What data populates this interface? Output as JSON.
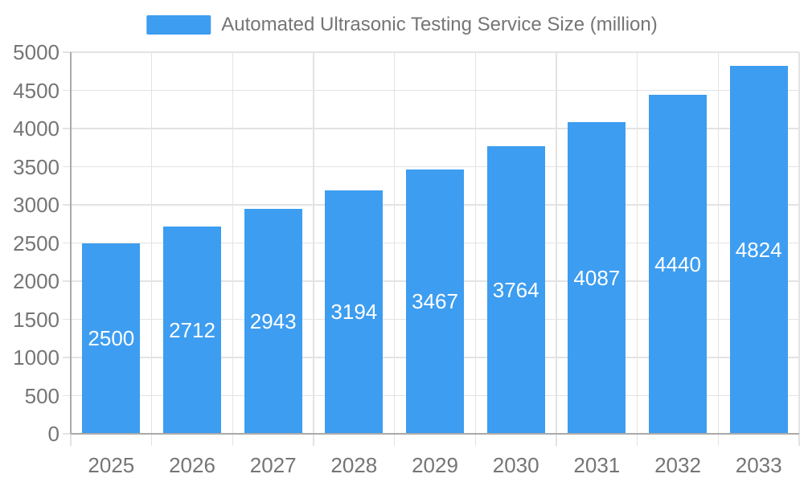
{
  "chart_data": {
    "type": "bar",
    "title": "Automated Ultrasonic Testing Service Size (million)",
    "legend": [
      "Automated Ultrasonic Testing Service Size (million)"
    ],
    "legend_position": "top",
    "categories": [
      "2025",
      "2026",
      "2027",
      "2028",
      "2029",
      "2030",
      "2031",
      "2032",
      "2033"
    ],
    "values": [
      2500,
      2712,
      2943,
      3194,
      3467,
      3764,
      4087,
      4440,
      4824
    ],
    "xlabel": "",
    "ylabel": "",
    "ylim": [
      0,
      5000
    ],
    "yticks": [
      0,
      500,
      1000,
      1500,
      2000,
      2500,
      3000,
      3500,
      4000,
      4500,
      5000
    ],
    "grid": true,
    "value_labels_shown": true,
    "colors": {
      "bar": "#3D9DF0",
      "grid": "#E3E3E3",
      "axis": "#AAAAAA",
      "tick_label": "#757575",
      "legend_text": "#757575",
      "value_label": "#FFFFFF",
      "background": "#FFFFFF"
    }
  }
}
